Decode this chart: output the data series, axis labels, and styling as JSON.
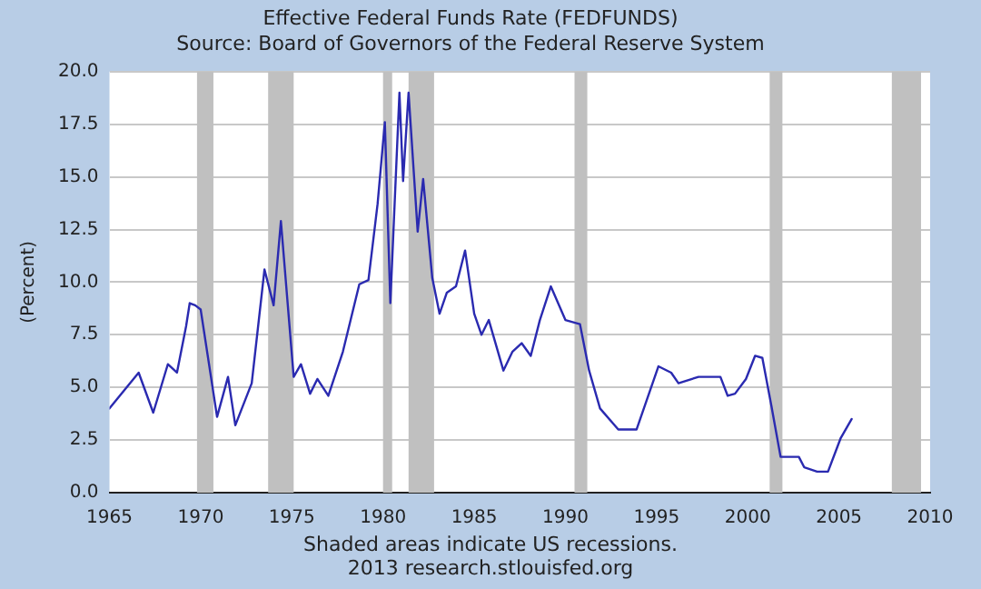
{
  "chart_data": {
    "type": "line",
    "title": "Effective Federal Funds Rate (FEDFUNDS)",
    "subtitle": "Source: Board of Governors of the Federal Reserve System",
    "ylabel": "(Percent)",
    "annotations": [
      "Shaded areas indicate US recessions.",
      "2013 research.stlouisfed.org"
    ],
    "series": [
      {
        "color": "#2a2ab0",
        "x": [
          1965.0,
          1966.6,
          1967.4,
          1968.2,
          1968.7,
          1969.2,
          1969.4,
          1969.7,
          1970.0,
          1970.9,
          1971.5,
          1971.9,
          1972.8,
          1973.5,
          1974.0,
          1974.4,
          1975.1,
          1975.5,
          1976.0,
          1976.4,
          1977.0,
          1977.8,
          1978.7,
          1979.2,
          1979.7,
          1980.1,
          1980.4,
          1980.9,
          1981.1,
          1981.4,
          1981.9,
          1982.2,
          1982.7,
          1983.1,
          1983.5,
          1984.0,
          1984.5,
          1985.0,
          1985.4,
          1985.8,
          1986.6,
          1987.1,
          1987.6,
          1988.1,
          1988.6,
          1989.2,
          1990.0,
          1990.8,
          1991.3,
          1991.9,
          1992.9,
          1993.9,
          1994.5,
          1995.1,
          1995.8,
          1996.2,
          1997.3,
          1998.5,
          1998.9,
          1999.3,
          1999.9,
          2000.4,
          2000.8,
          2001.3,
          2001.8,
          2002.8,
          2003.1,
          2003.8,
          2004.4,
          2005.1,
          2005.7
        ],
        "values": [
          4.0,
          5.7,
          3.8,
          6.1,
          5.7,
          7.9,
          9.0,
          8.9,
          8.7,
          3.6,
          5.5,
          3.2,
          5.2,
          10.6,
          8.9,
          12.9,
          5.5,
          6.1,
          4.7,
          5.4,
          4.6,
          6.7,
          9.9,
          10.1,
          13.7,
          17.6,
          9.0,
          19.0,
          14.8,
          19.0,
          12.4,
          14.9,
          10.2,
          8.5,
          9.5,
          9.8,
          11.5,
          8.5,
          7.5,
          8.2,
          5.8,
          6.7,
          7.1,
          6.5,
          8.2,
          9.8,
          8.2,
          8.0,
          5.8,
          4.0,
          3.0,
          3.0,
          4.5,
          6.0,
          5.7,
          5.2,
          5.5,
          5.5,
          4.6,
          4.7,
          5.4,
          6.5,
          6.4,
          4.1,
          1.7,
          1.7,
          1.2,
          1.0,
          1.0,
          2.6,
          3.5
        ]
      }
    ],
    "xlim": [
      1965,
      2010
    ],
    "xticks": [
      1965,
      1970,
      1975,
      1980,
      1985,
      1990,
      1995,
      2000,
      2005,
      2010
    ],
    "ylim": [
      0,
      20
    ],
    "yticks": [
      {
        "value": 0,
        "label": "0.0"
      },
      {
        "value": 2.5,
        "label": "2.5"
      },
      {
        "value": 5,
        "label": "5.0"
      },
      {
        "value": 7.5,
        "label": "7.5"
      },
      {
        "value": 10,
        "label": "10.0"
      },
      {
        "value": 12.5,
        "label": "12.5"
      },
      {
        "value": 15,
        "label": "15.0"
      },
      {
        "value": 17.5,
        "label": "17.5"
      },
      {
        "value": 20,
        "label": "20.0"
      }
    ],
    "bands": [
      {
        "axis": "x",
        "from": 1969.8,
        "to": 1970.7,
        "color": "#c0c0c0"
      },
      {
        "axis": "x",
        "from": 1973.7,
        "to": 1975.1,
        "color": "#c0c0c0"
      },
      {
        "axis": "x",
        "from": 1980.0,
        "to": 1980.5,
        "color": "#c0c0c0"
      },
      {
        "axis": "x",
        "from": 1981.4,
        "to": 1982.8,
        "color": "#c0c0c0"
      },
      {
        "axis": "x",
        "from": 1990.5,
        "to": 1991.2,
        "color": "#c0c0c0"
      },
      {
        "axis": "x",
        "from": 2001.2,
        "to": 2001.9,
        "color": "#c0c0c0"
      },
      {
        "axis": "x",
        "from": 2007.9,
        "to": 2009.5,
        "color": "#c0c0c0"
      }
    ],
    "grid": "y",
    "legend": false,
    "marker": "none",
    "line_style": "solid"
  }
}
